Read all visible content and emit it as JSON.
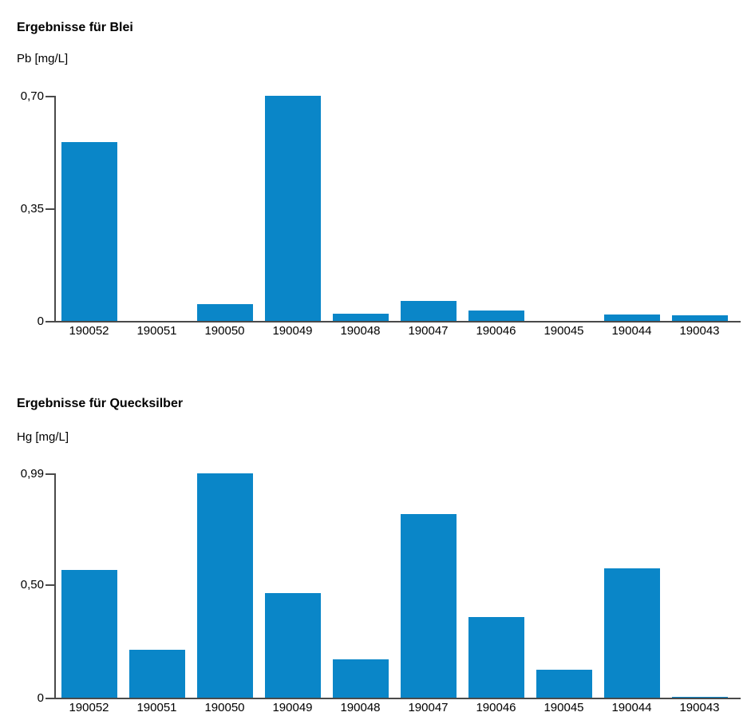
{
  "colors": {
    "bar": "#0a86c8",
    "axis": "#4a4a4a",
    "text": "#000000",
    "background": "#ffffff"
  },
  "chart_data": [
    {
      "type": "bar",
      "title": "Ergebnisse für Blei",
      "ylabel": "Pb [mg/L]",
      "xlabel": "",
      "categories": [
        "190052",
        "190051",
        "190050",
        "190049",
        "190048",
        "190047",
        "190046",
        "190045",
        "190044",
        "190043"
      ],
      "values": [
        0.555,
        0,
        0.052,
        0.7,
        0.022,
        0.062,
        0.032,
        0,
        0.021,
        0.017
      ],
      "yticks": [
        {
          "value": 0,
          "label": "0"
        },
        {
          "value": 0.35,
          "label": "0,35"
        },
        {
          "value": 0.7,
          "label": "0,70"
        }
      ],
      "ylim": [
        0,
        0.7
      ],
      "grid": false,
      "legend": "none"
    },
    {
      "type": "bar",
      "title": "Ergebnisse für Quecksilber",
      "ylabel": "Hg [mg/L]",
      "xlabel": "",
      "categories": [
        "190052",
        "190051",
        "190050",
        "190049",
        "190048",
        "190047",
        "190046",
        "190045",
        "190044",
        "190043"
      ],
      "values": [
        0.565,
        0.21,
        0.99,
        0.46,
        0.17,
        0.81,
        0.355,
        0.125,
        0.57,
        0.005
      ],
      "yticks": [
        {
          "value": 0,
          "label": "0"
        },
        {
          "value": 0.5,
          "label": "0,50"
        },
        {
          "value": 0.99,
          "label": "0,99"
        }
      ],
      "ylim": [
        0,
        0.99
      ],
      "grid": false,
      "legend": "none"
    }
  ]
}
